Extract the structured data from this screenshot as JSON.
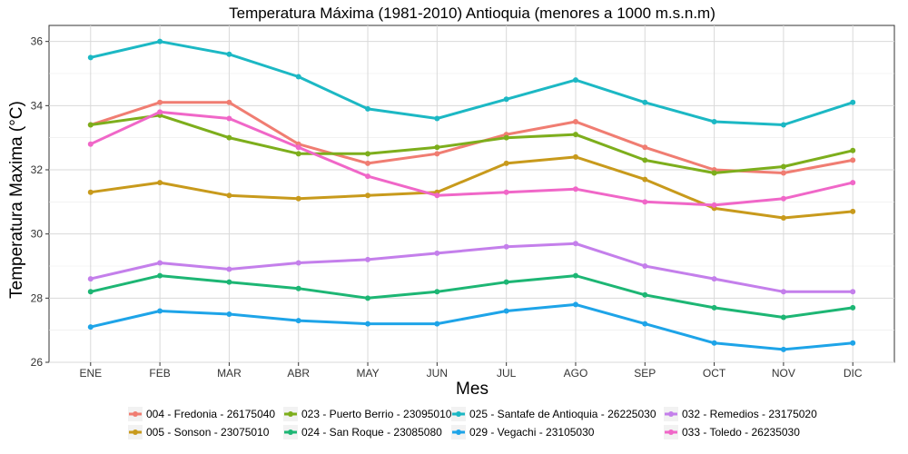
{
  "chart_data": {
    "type": "line",
    "title": "Temperatura Máxima (1981-2010) Antioquia (menores a 1000 m.s.n.m)",
    "xlabel": "Mes",
    "ylabel": "Temperatura Maxima (°C)",
    "categories": [
      "ENE",
      "FEB",
      "MAR",
      "ABR",
      "MAY",
      "JUN",
      "JUL",
      "AGO",
      "SEP",
      "OCT",
      "NOV",
      "DIC"
    ],
    "ylim": [
      26,
      36.5
    ],
    "yticks": [
      26,
      28,
      30,
      32,
      34,
      36
    ],
    "grid": true,
    "legend_position": "bottom",
    "series": [
      {
        "name": "004 - Fredonia - 26175040",
        "color": "#F07D72",
        "values": [
          33.4,
          34.1,
          34.1,
          32.8,
          32.2,
          32.5,
          33.1,
          33.5,
          32.7,
          32.0,
          31.9,
          32.3
        ]
      },
      {
        "name": "005 - Sonson - 23075010",
        "color": "#C89A1C",
        "values": [
          31.3,
          31.6,
          31.2,
          31.1,
          31.2,
          31.3,
          32.2,
          32.4,
          31.7,
          30.8,
          30.5,
          30.7
        ]
      },
      {
        "name": "023 - Puerto Berrio - 23095010",
        "color": "#7DAE1C",
        "values": [
          33.4,
          33.7,
          33.0,
          32.5,
          32.5,
          32.7,
          33.0,
          33.1,
          32.3,
          31.9,
          32.1,
          32.6
        ]
      },
      {
        "name": "024 - San Roque - 23085080",
        "color": "#1DB674",
        "values": [
          28.2,
          28.7,
          28.5,
          28.3,
          28.0,
          28.2,
          28.5,
          28.7,
          28.1,
          27.7,
          27.4,
          27.7
        ]
      },
      {
        "name": "025 - Santafe de Antioquia - 26225030",
        "color": "#1CB8C4",
        "values": [
          35.5,
          36.0,
          35.6,
          34.9,
          33.9,
          33.6,
          34.2,
          34.8,
          34.1,
          33.5,
          33.4,
          34.1
        ]
      },
      {
        "name": "029 - Vegachi - 23105030",
        "color": "#1EA4E8",
        "values": [
          27.1,
          27.6,
          27.5,
          27.3,
          27.2,
          27.2,
          27.6,
          27.8,
          27.2,
          26.6,
          26.4,
          26.6
        ]
      },
      {
        "name": "032 - Remedios - 23175020",
        "color": "#C47FEB",
        "values": [
          28.6,
          29.1,
          28.9,
          29.1,
          29.2,
          29.4,
          29.6,
          29.7,
          29.0,
          28.6,
          28.2,
          28.2
        ]
      },
      {
        "name": "033 - Toledo - 26235030",
        "color": "#F067C8",
        "values": [
          32.8,
          33.8,
          33.6,
          32.7,
          31.8,
          31.2,
          31.3,
          31.4,
          31.0,
          30.9,
          31.1,
          31.6
        ]
      }
    ]
  }
}
